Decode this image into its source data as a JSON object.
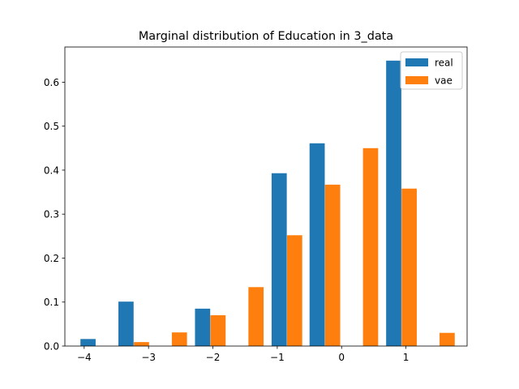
{
  "chart_data": {
    "type": "bar",
    "title": "Marginal distribution of Education in 3_data",
    "xlabel": "",
    "ylabel": "",
    "xlim": [
      -4.3,
      1.95
    ],
    "ylim": [
      0,
      0.68
    ],
    "xticks": [
      -4,
      -3,
      -2,
      -1,
      0,
      1
    ],
    "xtick_labels": [
      "−4",
      "−3",
      "−2",
      "−1",
      "0",
      "1"
    ],
    "yticks": [
      0.0,
      0.1,
      0.2,
      0.3,
      0.4,
      0.5,
      0.6
    ],
    "ytick_labels": [
      "0.0",
      "0.1",
      "0.2",
      "0.3",
      "0.4",
      "0.5",
      "0.6"
    ],
    "bar_width": 0.236,
    "legend_position": "top-right",
    "grid": false,
    "series": [
      {
        "name": "real",
        "color": "#1f77b4",
        "x": [
          -3.94,
          -3.35,
          -2.16,
          -0.97,
          -0.38,
          0.81
        ],
        "values": [
          0.016,
          0.101,
          0.085,
          0.393,
          0.461,
          0.649
        ]
      },
      {
        "name": "vae",
        "color": "#ff7f0e",
        "x": [
          -3.11,
          -2.52,
          -1.92,
          -1.33,
          -0.73,
          -0.14,
          0.45,
          1.05,
          1.64
        ],
        "values": [
          0.009,
          0.031,
          0.07,
          0.134,
          0.252,
          0.367,
          0.45,
          0.358,
          0.03
        ]
      }
    ]
  }
}
